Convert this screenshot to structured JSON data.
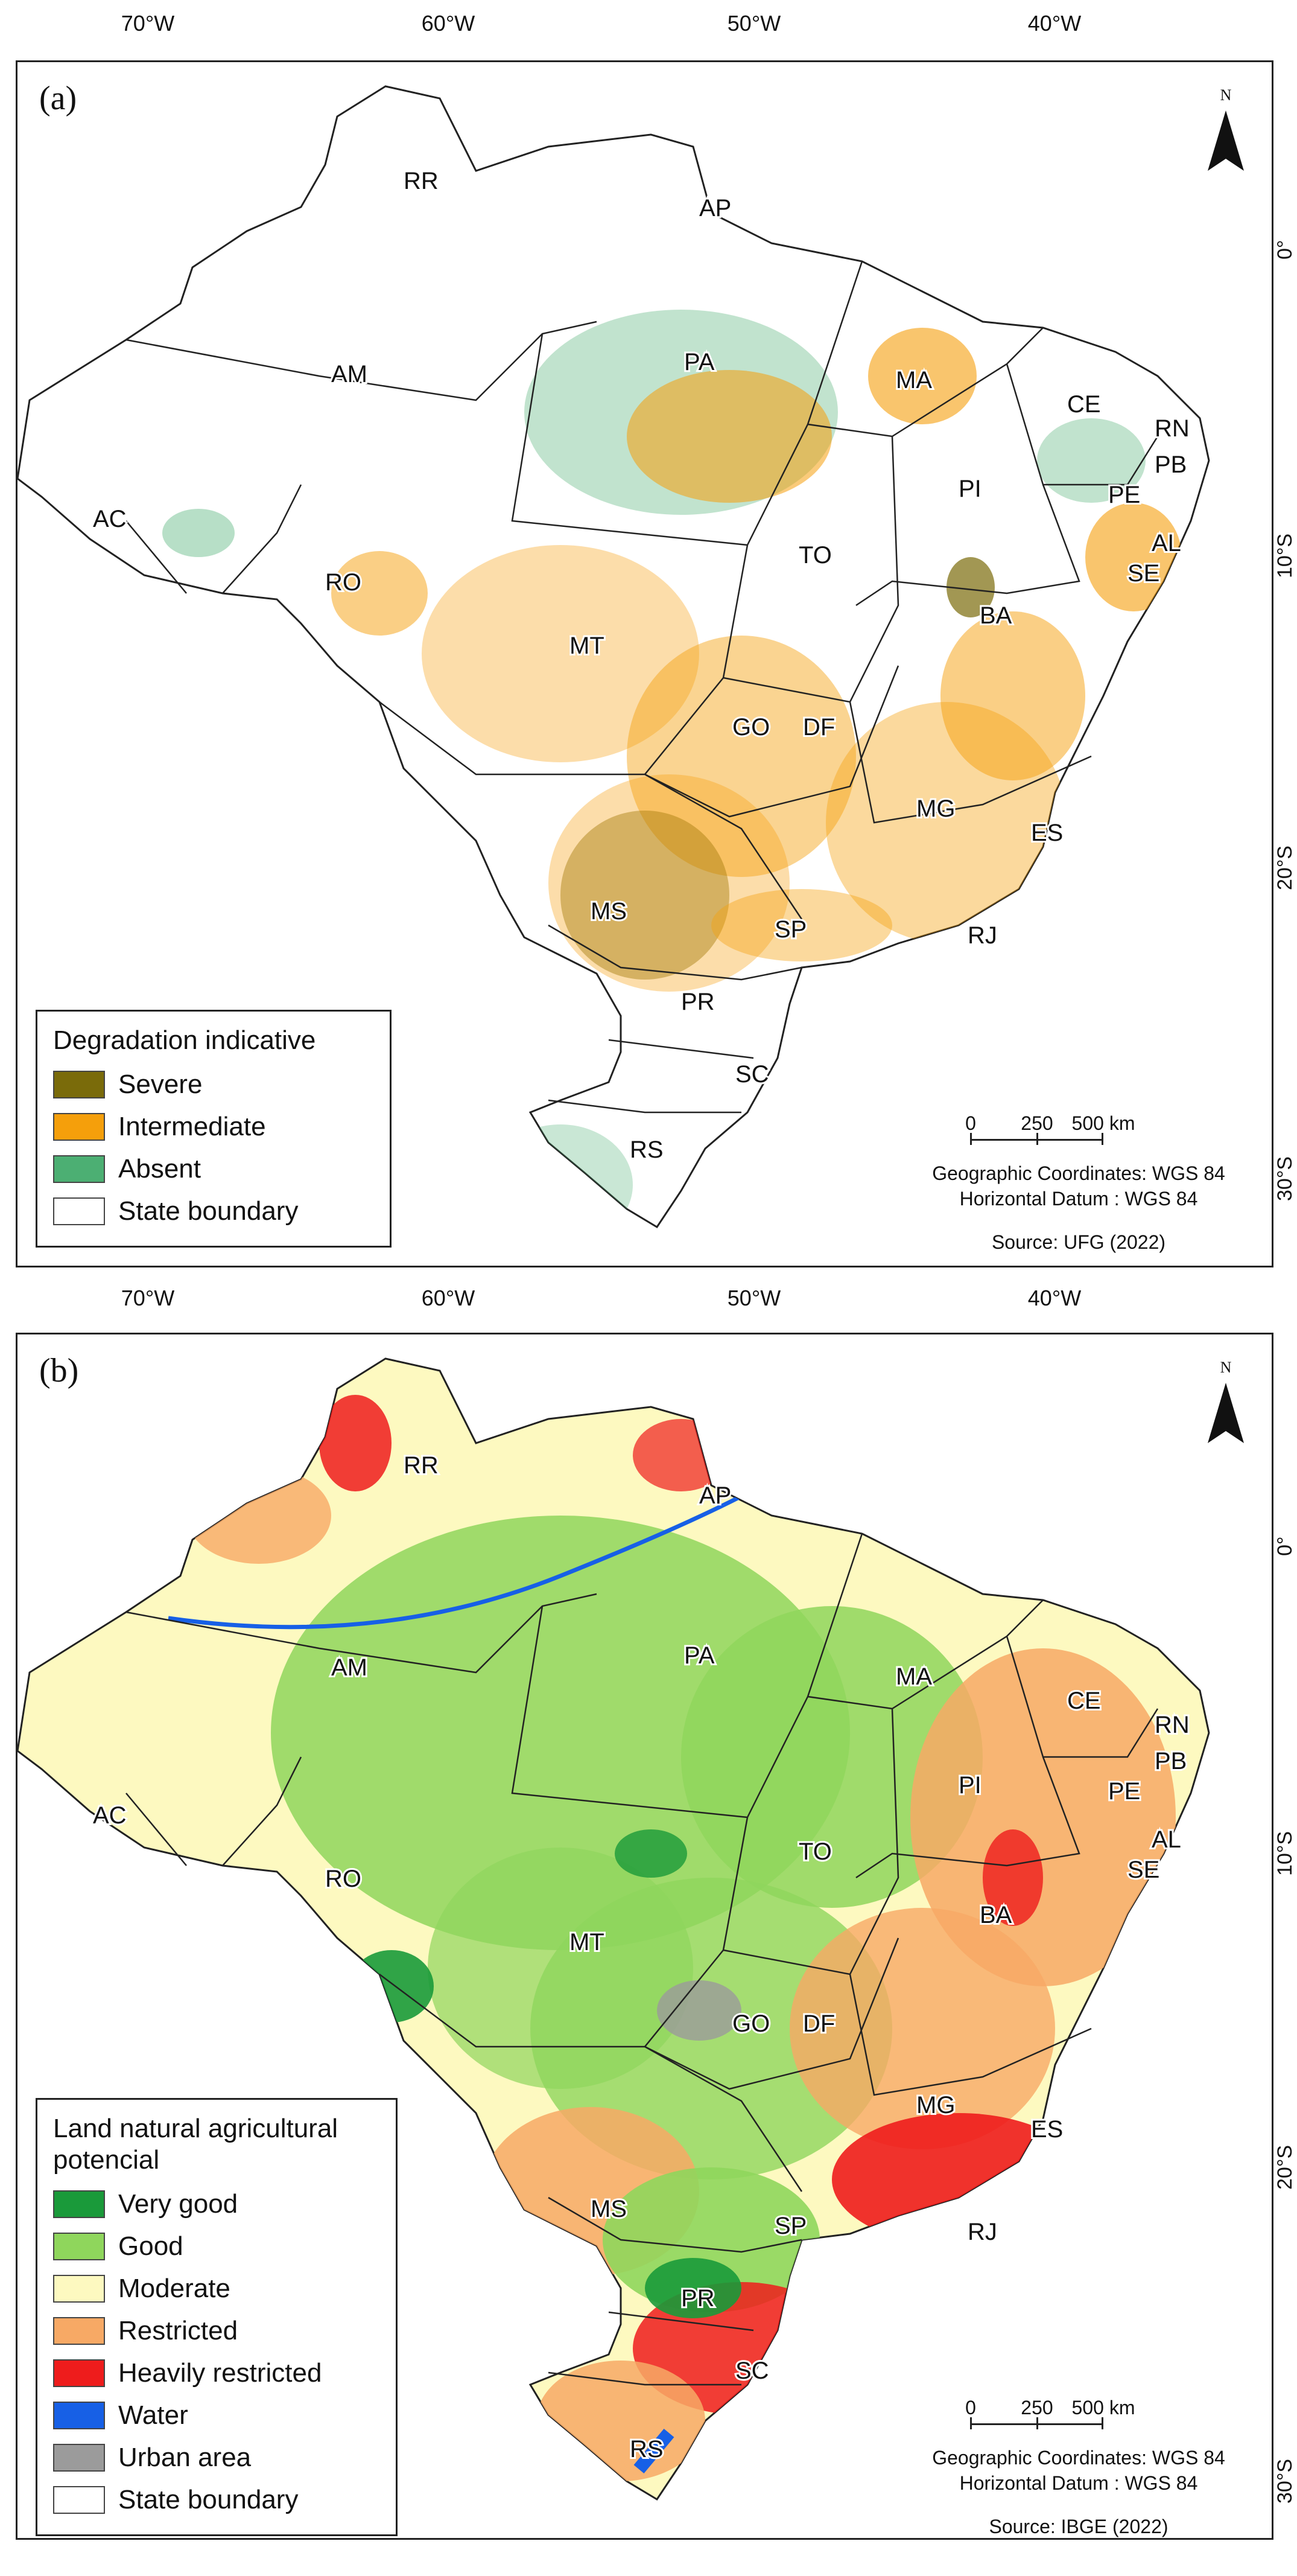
{
  "longitude_labels": [
    "70°W",
    "60°W",
    "50°W",
    "40°W"
  ],
  "latitude_labels": [
    "0°",
    "10°S",
    "20°S",
    "30°S"
  ],
  "north_label": "N",
  "scale": {
    "ticks": [
      "0",
      "250",
      "500 km"
    ],
    "coordinates": "Geographic Coordinates: WGS 84",
    "datum": "Horizontal Datum : WGS 84"
  },
  "states": [
    "RR",
    "AP",
    "AM",
    "PA",
    "MA",
    "CE",
    "RN",
    "PB",
    "PI",
    "PE",
    "AC",
    "RO",
    "TO",
    "AL",
    "SE",
    "BA",
    "MT",
    "GO",
    "DF",
    "MG",
    "ES",
    "MS",
    "SP",
    "RJ",
    "PR",
    "SC",
    "RS"
  ],
  "panels": [
    {
      "label": "(a)",
      "legend_title": "Degradation indicative",
      "legend": [
        {
          "label": "Severe",
          "color": "#7a6b0a"
        },
        {
          "label": "Intermediate",
          "color": "#f59f0b"
        },
        {
          "label": "Absent",
          "color": "#4caf73"
        },
        {
          "label": "State boundary",
          "color": "#ffffff"
        }
      ],
      "source": "Source: UFG (2022)"
    },
    {
      "label": "(b)",
      "legend_title": "Land natural agricultural potencial",
      "legend": [
        {
          "label": "Very good",
          "color": "#1a9a3a"
        },
        {
          "label": "Good",
          "color": "#8fd65c"
        },
        {
          "label": "Moderate",
          "color": "#fdf9c0"
        },
        {
          "label": "Restricted",
          "color": "#f7a965"
        },
        {
          "label": "Heavily restricted",
          "color": "#ee1c1c"
        },
        {
          "label": "Water",
          "color": "#1760e6"
        },
        {
          "label": "Urban area",
          "color": "#9b9b9b"
        },
        {
          "label": "State boundary",
          "color": "#ffffff"
        }
      ],
      "source": "Source: IBGE (2022)"
    }
  ]
}
